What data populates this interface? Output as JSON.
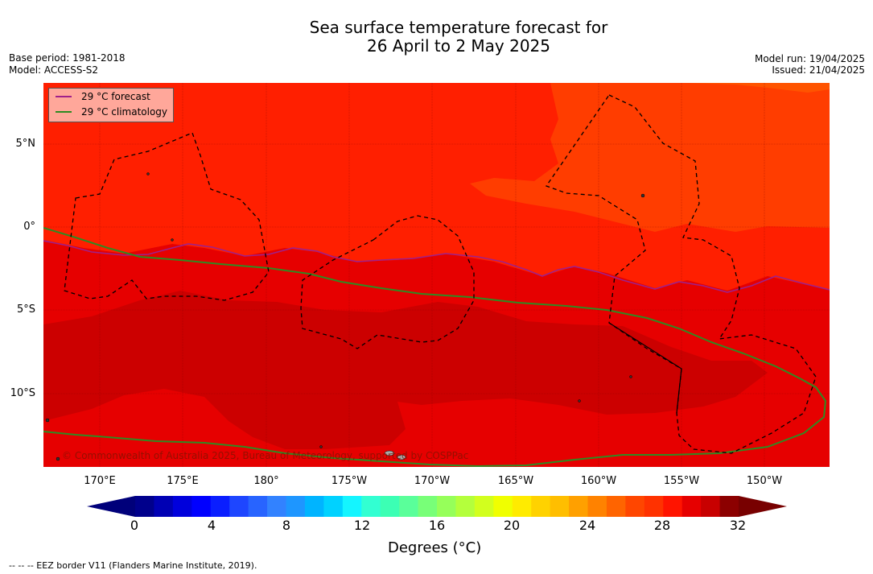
{
  "title_line1": "Sea surface temperature forecast for",
  "title_line2": "26 April to 2 May 2025",
  "base_period": "Base period: 1981-2018",
  "model": "Model: ACCESS-S2",
  "model_run": "Model run: 19/04/2025",
  "issued": "Issued: 21/04/2025",
  "legend": {
    "forecast": "29 °C  forecast",
    "climatology": "29 °C  climatology",
    "forecast_color": "#a0208a",
    "climatology_color": "#2e8b22"
  },
  "map": {
    "lon_labels": [
      "170°E",
      "175°E",
      "180°",
      "175°W",
      "170°W",
      "165°W",
      "160°W",
      "155°W",
      "150°W"
    ],
    "lat_labels": [
      "5°N",
      "0°",
      "5°S",
      "10°S"
    ],
    "copyright": "© Commonwealth of Australia 2025, Bureau of Meteorology, supported by COSPPac"
  },
  "colorbar": {
    "tick_labels": [
      "0",
      "4",
      "8",
      "12",
      "16",
      "20",
      "24",
      "28",
      "32"
    ],
    "label": "Degrees (°C)",
    "colors": [
      "#00008c",
      "#0000b4",
      "#0000dc",
      "#0000ff",
      "#0a1eff",
      "#1e46ff",
      "#2864ff",
      "#3282ff",
      "#1e96ff",
      "#00b4ff",
      "#00d2ff",
      "#14f5ff",
      "#32ffd2",
      "#3cffb4",
      "#5aff9a",
      "#78ff78",
      "#96ff5a",
      "#b4ff3c",
      "#d2ff1e",
      "#f0ff00",
      "#ffeb00",
      "#ffd200",
      "#ffbe00",
      "#ffa000",
      "#ff8200",
      "#ff6400",
      "#ff4600",
      "#ff3200",
      "#ff1400",
      "#e60000",
      "#c80000",
      "#8c0000"
    ]
  },
  "footnote": "--  --  -- EEZ border V11 (Flanders Marine Institute, 2019)."
}
